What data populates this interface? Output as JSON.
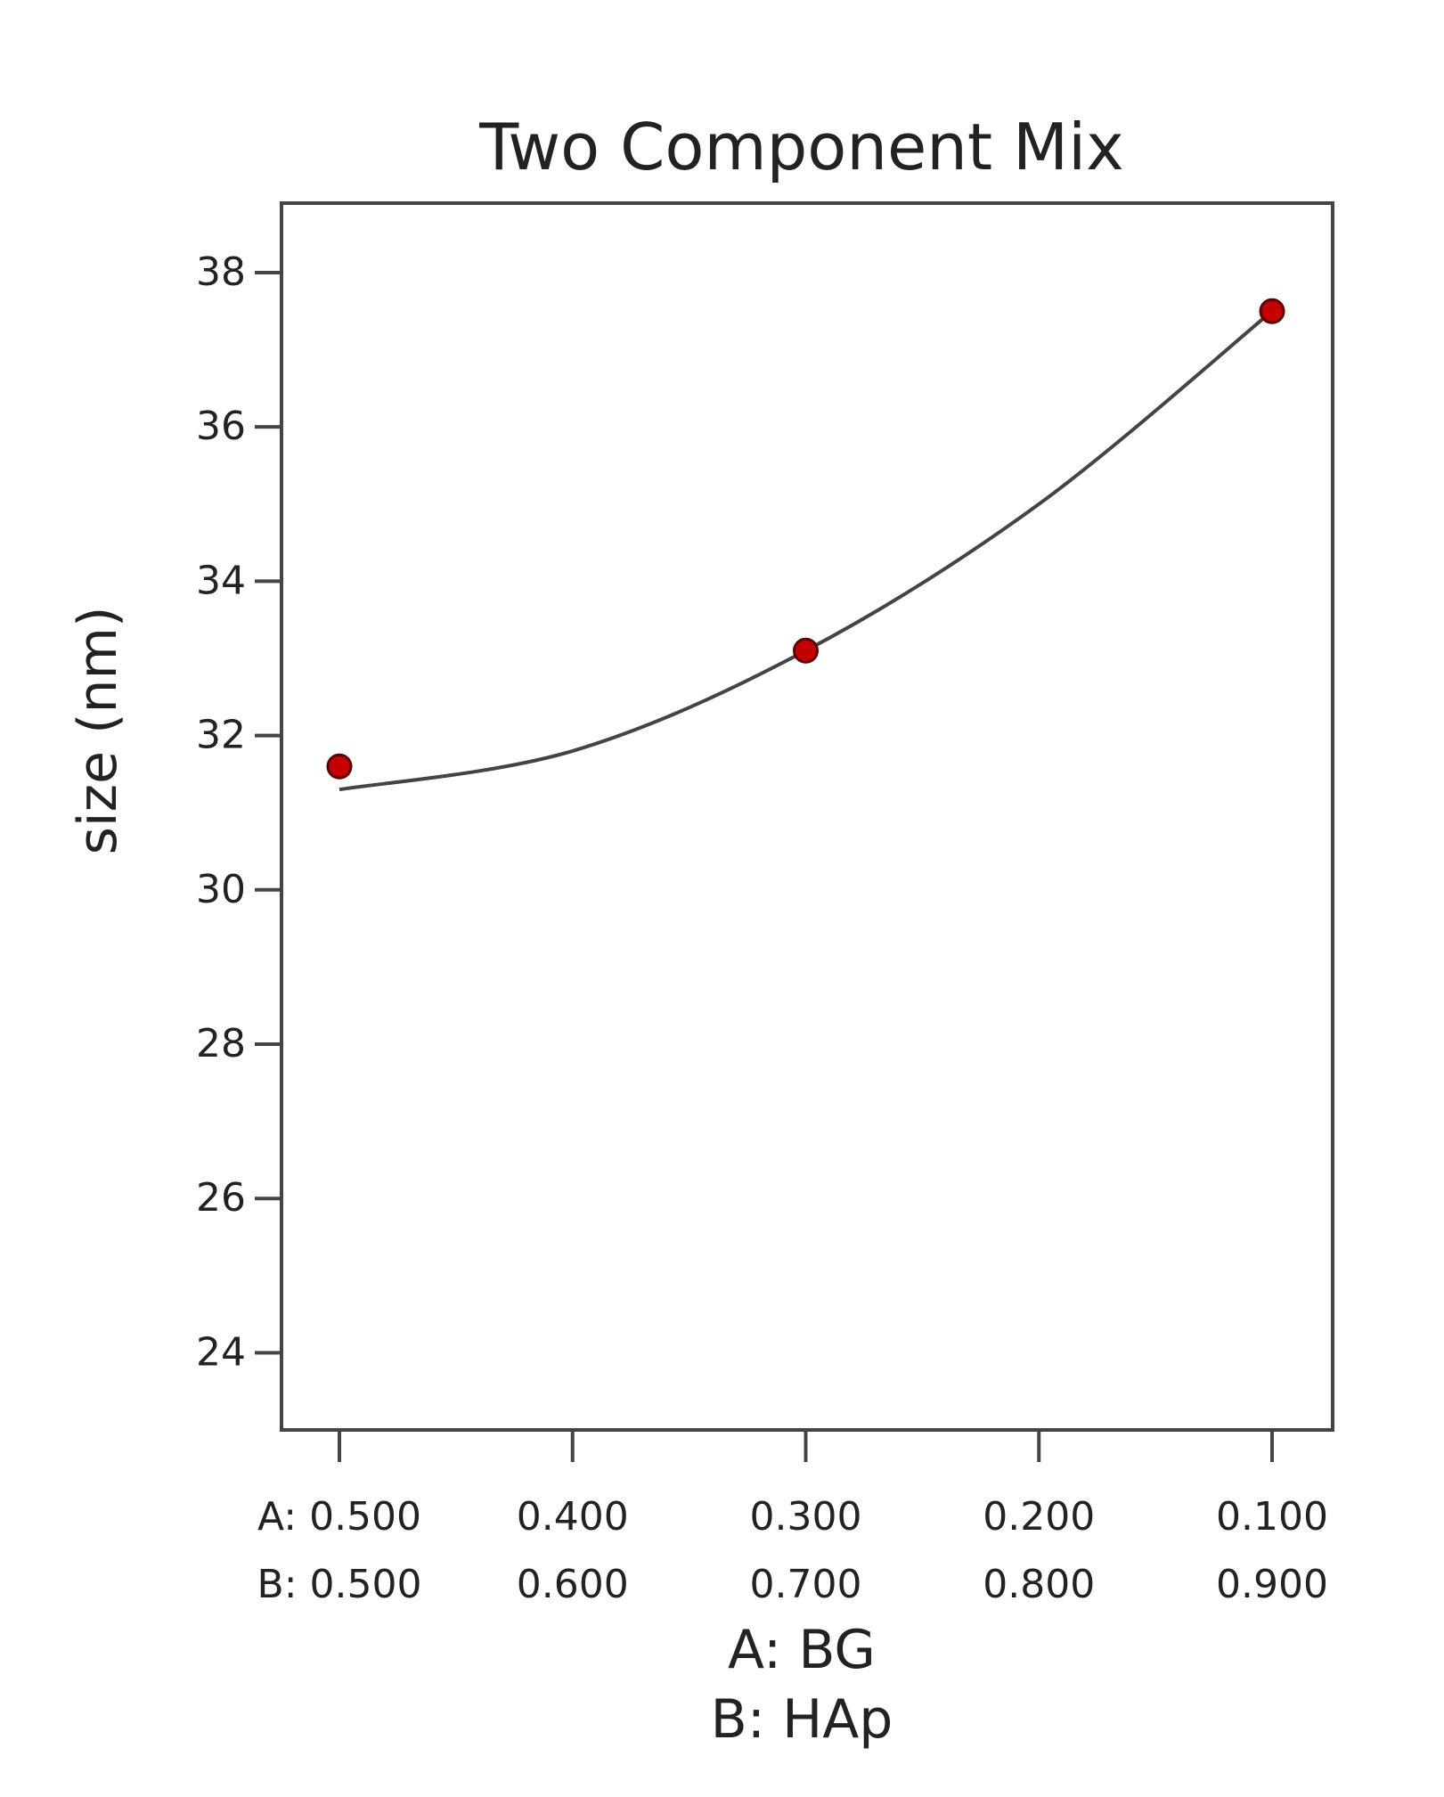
{
  "chart_data": {
    "type": "line",
    "title": "Two Component Mix",
    "ylabel": "size (nm)",
    "xlabel": [
      "A: BG",
      "B: HAp"
    ],
    "ylim": [
      23,
      38.9
    ],
    "xlim": [
      0.5,
      0.1
    ],
    "y_ticks": [
      24,
      26,
      28,
      30,
      32,
      34,
      36,
      38
    ],
    "x_ticks": [
      {
        "a": 0.5,
        "label_a": "A: 0.500",
        "label_b": "B: 0.500"
      },
      {
        "a": 0.4,
        "label_a": "0.400",
        "label_b": "0.600"
      },
      {
        "a": 0.3,
        "label_a": "0.300",
        "label_b": "0.700"
      },
      {
        "a": 0.2,
        "label_a": "0.200",
        "label_b": "0.800"
      },
      {
        "a": 0.1,
        "label_a": "0.100",
        "label_b": "0.900"
      }
    ],
    "points": [
      {
        "a": 0.5,
        "y": 31.6
      },
      {
        "a": 0.3,
        "y": 33.1
      },
      {
        "a": 0.1,
        "y": 37.5
      }
    ],
    "fit_curve": [
      {
        "a": 0.5,
        "y": 31.3
      },
      {
        "a": 0.4,
        "y": 31.8
      },
      {
        "a": 0.3,
        "y": 33.1
      },
      {
        "a": 0.2,
        "y": 35.0
      },
      {
        "a": 0.1,
        "y": 37.5
      }
    ],
    "colors": {
      "point_fill": "#c40000",
      "point_stroke": "#5a0000",
      "curve": "#444444",
      "axis": "#444444"
    },
    "grid": false
  }
}
